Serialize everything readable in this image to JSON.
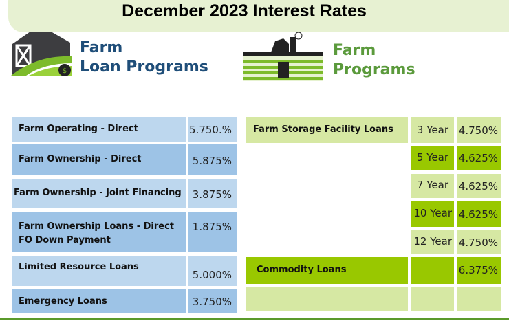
{
  "title": "December 2023 Interest Rates",
  "left_brand": {
    "line1": "Farm",
    "line2": "Loan Programs",
    "color": "#1f4e79"
  },
  "right_brand": {
    "line1": "Farm",
    "line2": "Programs",
    "color": "#5b9a3c"
  },
  "farm_loan_rates": [
    {
      "program": "Farm Operating - Direct",
      "rate": "5.750.%"
    },
    {
      "program": "Farm Ownership - Direct",
      "rate": "5.875%"
    },
    {
      "program": "Farm Ownership - Joint Financing",
      "rate": "3.875%"
    },
    {
      "program": "Farm Ownership Loans - Direct FO Down Payment",
      "rate": "1.875%"
    },
    {
      "program": "Limited Resource Loans",
      "rate": "5.000%"
    },
    {
      "program": "Emergency Loans",
      "rate": "3.750%"
    }
  ],
  "farm_program_rates": [
    {
      "program": "Farm Storage Facility Loans",
      "term": "3 Year",
      "rate": "4.750%"
    },
    {
      "program": "",
      "term": "5 Year",
      "rate": "4.625%"
    },
    {
      "program": "",
      "term": "7 Year",
      "rate": "4.625%"
    },
    {
      "program": "",
      "term": "10 Year",
      "rate": "4.625%"
    },
    {
      "program": "",
      "term": "12 Year",
      "rate": "4.750%"
    },
    {
      "program": "Commodity Loans",
      "term": "",
      "rate": "6.375%"
    },
    {
      "program": "",
      "term": "",
      "rate": ""
    }
  ]
}
